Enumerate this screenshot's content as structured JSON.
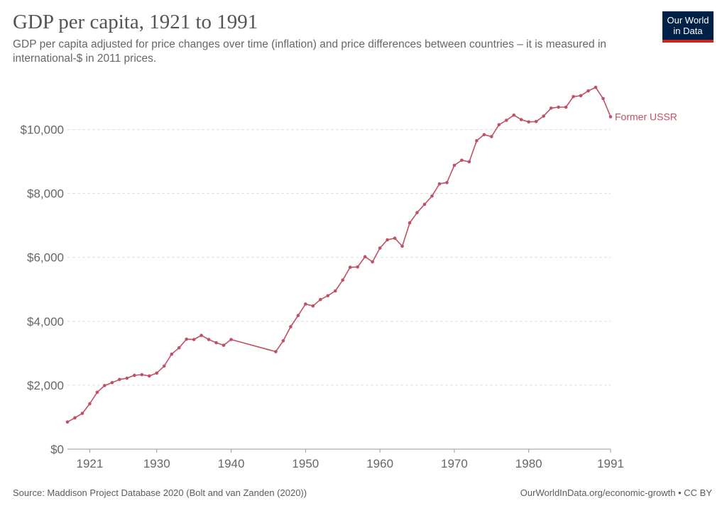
{
  "header": {
    "title": "GDP per capita, 1921 to 1991",
    "subtitle": "GDP per capita adjusted for price changes over time (inflation) and price differences between countries – it is measured in international-$ in 2011 prices."
  },
  "logo": {
    "line1": "Our World",
    "line2": "in Data"
  },
  "footer": {
    "source": "Source: Maddison Project Database 2020 (Bolt and van Zanden (2020))",
    "credit": "OurWorldInData.org/economic-growth • CC BY"
  },
  "colors": {
    "series": "#c15065",
    "grid": "#dddddd",
    "axis": "#666666"
  },
  "chart_data": {
    "type": "line",
    "title": "GDP per capita, 1921 to 1991",
    "xlim": [
      1918,
      1991
    ],
    "ylim": [
      0,
      11500
    ],
    "x_ticks": [
      1921,
      1930,
      1940,
      1950,
      1960,
      1970,
      1980,
      1991
    ],
    "x_tick_labels": [
      "1921",
      "1930",
      "1940",
      "1950",
      "1960",
      "1970",
      "1980",
      "1991"
    ],
    "y_ticks": [
      0,
      2000,
      4000,
      6000,
      8000,
      10000
    ],
    "y_tick_labels": [
      "$0",
      "$2,000",
      "$4,000",
      "$6,000",
      "$8,000",
      "$10,000"
    ],
    "grid": "horizontal dashed",
    "legend": "inline label at line end",
    "series": [
      {
        "name": "Former USSR",
        "x": [
          1918,
          1919,
          1920,
          1921,
          1922,
          1923,
          1924,
          1925,
          1926,
          1927,
          1928,
          1929,
          1930,
          1931,
          1932,
          1933,
          1934,
          1935,
          1936,
          1937,
          1938,
          1939,
          1940,
          1946,
          1947,
          1948,
          1949,
          1950,
          1951,
          1952,
          1953,
          1954,
          1955,
          1956,
          1957,
          1958,
          1959,
          1960,
          1961,
          1962,
          1963,
          1964,
          1965,
          1966,
          1967,
          1968,
          1969,
          1970,
          1971,
          1972,
          1973,
          1974,
          1975,
          1976,
          1977,
          1978,
          1979,
          1980,
          1981,
          1982,
          1983,
          1984,
          1985,
          1986,
          1987,
          1988,
          1989,
          1990,
          1991
        ],
        "y": [
          850,
          980,
          1120,
          1420,
          1780,
          1990,
          2080,
          2180,
          2220,
          2310,
          2330,
          2290,
          2380,
          2600,
          2970,
          3170,
          3440,
          3430,
          3560,
          3430,
          3330,
          3250,
          3430,
          3050,
          3390,
          3830,
          4180,
          4540,
          4480,
          4680,
          4800,
          4950,
          5290,
          5690,
          5700,
          6020,
          5860,
          6290,
          6550,
          6600,
          6350,
          7080,
          7400,
          7660,
          7920,
          8300,
          8340,
          8880,
          9040,
          8990,
          9650,
          9840,
          9780,
          10150,
          10290,
          10450,
          10310,
          10240,
          10250,
          10420,
          10670,
          10700,
          10700,
          11030,
          11060,
          11210,
          11320,
          10970,
          10400
        ]
      }
    ]
  }
}
